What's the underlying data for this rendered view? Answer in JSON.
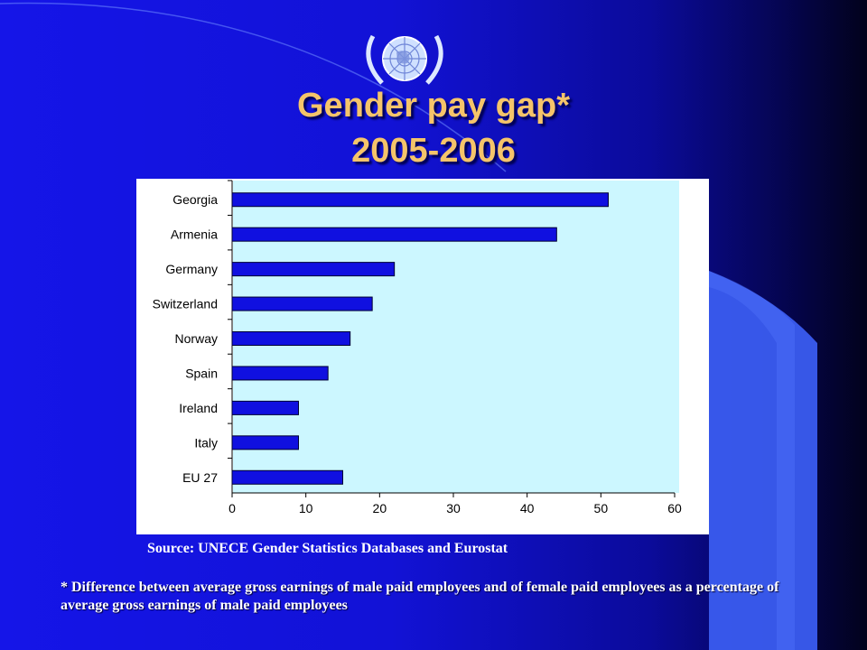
{
  "slide": {
    "title_line1": "Gender pay gap*",
    "title_line2": "2005-2006",
    "source": "Source: UNECE Gender Statistics Databases and Eurostat",
    "footnote": "* Difference between average gross earnings of male paid employees and of female paid employees as a percentage of average gross earnings of male paid employees",
    "logo": "un-emblem-icon",
    "colors": {
      "title": "#f5c46a",
      "plot_background": "#ccf7ff",
      "bar": "#1010e0",
      "accent_swoosh": "#3a5cf0"
    }
  },
  "chart_data": {
    "type": "bar",
    "orientation": "horizontal",
    "categories": [
      "Georgia",
      "Armenia",
      "Germany",
      "Switzerland",
      "Norway",
      "Spain",
      "Ireland",
      "Italy",
      "EU 27"
    ],
    "values": [
      51,
      44,
      22,
      19,
      16,
      13,
      9,
      9,
      15
    ],
    "xticks": [
      "0",
      "10",
      "20",
      "30",
      "40",
      "50",
      "60"
    ],
    "xlim": [
      0,
      60
    ],
    "title": "",
    "xlabel": "",
    "ylabel": "",
    "grid": false,
    "legend": "none"
  }
}
